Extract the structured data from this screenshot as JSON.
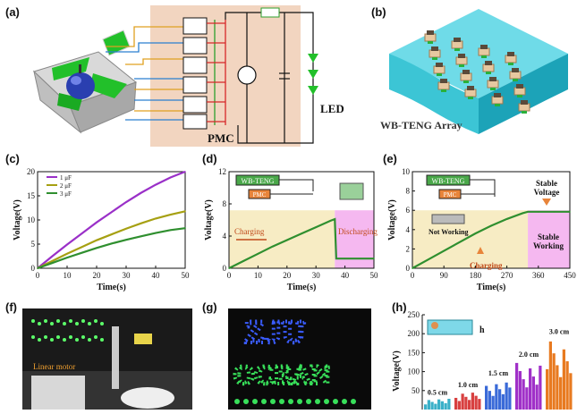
{
  "panels": {
    "a": "(a)",
    "b": "(b)",
    "c": "(c)",
    "d": "(d)",
    "e": "(e)",
    "f": "(f)",
    "g": "(g)",
    "h": "(h)"
  },
  "panel_a": {
    "pmc_label": "PMC",
    "led_label": "LED"
  },
  "panel_b": {
    "label": "WB-TENG Array"
  },
  "panel_d": {
    "box1": "WB-TENG",
    "box2": "PMC",
    "charging": "Charging",
    "discharging": "Discharging"
  },
  "panel_e": {
    "box1": "WB-TENG",
    "box2": "PMC",
    "not_working": "Not Working",
    "charging": "Charging",
    "stable_voltage": "Stable\nVoltage",
    "stable_working": "Stable\nWorking"
  },
  "panel_f": {
    "label": "Linear motor"
  },
  "panel_g": {
    "row1": "ZJU",
    "row2": "OCEAN"
  },
  "panel_h": {
    "sizes": [
      "0.5 cm",
      "1.0 cm",
      "1.5 cm",
      "2.0 cm",
      "3.0 cm"
    ],
    "h_label": "h"
  },
  "colors": {
    "pmc_bg": "#f2d5c0",
    "purple": "#9a30c8",
    "olive": "#a6a012",
    "green": "#2f8f2f",
    "pink": "#f5b8f0",
    "cream": "#f7ecc4",
    "cyan": "#3cc5d5"
  },
  "chart_data": [
    {
      "type": "line",
      "panel": "c",
      "xlabel": "Time(s)",
      "ylabel": "Voltage(V)",
      "xlim": [
        0,
        50
      ],
      "ylim": [
        0,
        20
      ],
      "xticks": [
        0,
        10,
        20,
        30,
        40,
        50
      ],
      "yticks": [
        0,
        5,
        10,
        15,
        20
      ],
      "legend": "top-left",
      "series": [
        {
          "name": "1 μF",
          "color": "#9a30c8",
          "x": [
            0,
            5,
            10,
            15,
            20,
            25,
            30,
            35,
            40,
            45,
            50
          ],
          "y": [
            0,
            2.5,
            4.9,
            7.2,
            9.5,
            11.6,
            13.7,
            15.6,
            17.3,
            18.8,
            20
          ]
        },
        {
          "name": "2 μF",
          "color": "#a6a012",
          "x": [
            0,
            5,
            10,
            15,
            20,
            25,
            30,
            35,
            40,
            45,
            50
          ],
          "y": [
            0,
            1.5,
            3,
            4.4,
            5.8,
            7,
            8.2,
            9.3,
            10.3,
            11.1,
            11.8
          ]
        },
        {
          "name": "3 μF",
          "color": "#2f8f2f",
          "x": [
            0,
            5,
            10,
            15,
            20,
            25,
            30,
            35,
            40,
            45,
            50
          ],
          "y": [
            0,
            1.1,
            2.2,
            3.2,
            4.2,
            5.1,
            5.9,
            6.6,
            7.3,
            7.9,
            8.3
          ]
        }
      ]
    },
    {
      "type": "line",
      "panel": "d",
      "xlabel": "Time(s)",
      "ylabel": "Voltage(V)",
      "xlim": [
        0,
        50
      ],
      "ylim": [
        0,
        12
      ],
      "xticks": [
        0,
        10,
        20,
        30,
        40,
        50
      ],
      "yticks": [
        0,
        4,
        8,
        12
      ],
      "series": [
        {
          "name": "",
          "color": "#2f8f2f",
          "x": [
            0,
            5,
            10,
            15,
            20,
            25,
            30,
            35,
            36.5,
            37,
            40,
            45,
            50
          ],
          "y": [
            0,
            0.9,
            1.8,
            2.7,
            3.5,
            4.3,
            5.1,
            5.9,
            6.1,
            1.2,
            1.2,
            1.2,
            1.2
          ]
        }
      ]
    },
    {
      "type": "line",
      "panel": "e",
      "xlabel": "Time(s)",
      "ylabel": "Voltage(V)",
      "xlim": [
        0,
        450
      ],
      "ylim": [
        0,
        10
      ],
      "xticks": [
        0,
        90,
        180,
        270,
        360,
        450
      ],
      "yticks": [
        0,
        2,
        4,
        6,
        8,
        10
      ],
      "series": [
        {
          "name": "",
          "color": "#2f8f2f",
          "x": [
            0,
            45,
            90,
            135,
            180,
            225,
            270,
            315,
            330,
            360,
            405,
            450
          ],
          "y": [
            0,
            0.9,
            1.8,
            2.7,
            3.6,
            4.4,
            5.1,
            5.7,
            5.85,
            5.85,
            5.85,
            5.85
          ]
        }
      ]
    },
    {
      "type": "bar",
      "panel": "h",
      "xlabel": "",
      "ylabel": "Voltage(V)",
      "ylim": [
        0,
        250
      ],
      "yticks": [
        50,
        100,
        150,
        200,
        250
      ],
      "categories": [
        "0.5 cm",
        "1.0 cm",
        "1.5 cm",
        "2.0 cm",
        "3.0 cm"
      ],
      "series": [
        {
          "name": "",
          "values": [
            30,
            50,
            80,
            130,
            190
          ]
        }
      ]
    }
  ]
}
